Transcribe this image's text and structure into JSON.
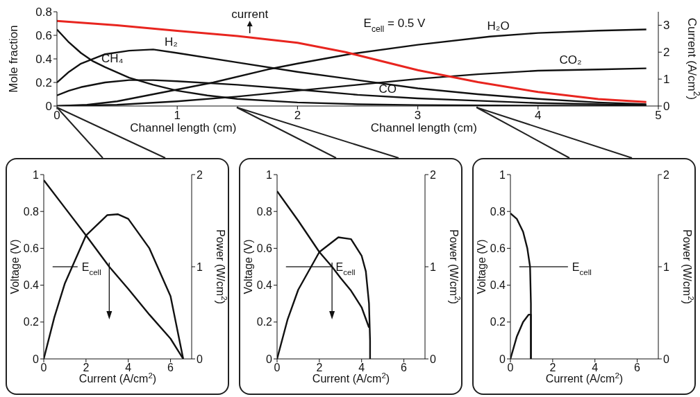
{
  "chart_data": [
    {
      "type": "line",
      "xlabel": "Channel length (cm)",
      "ylabel": "Mole fraction",
      "y2label": "Current (A/cm$^{2}$)",
      "annotations": [
        "E$_{cell}$ = 0.5 V",
        "Channel length (cm)"
      ],
      "xlim": [
        0,
        5
      ],
      "xticks": [
        0,
        1,
        2,
        3,
        4,
        5
      ],
      "ylim": [
        0,
        0.8
      ],
      "yticks": [
        0,
        0.2,
        0.4,
        0.6,
        0.8
      ],
      "y2lim": [
        0,
        3.5
      ],
      "y2ticks": [
        0,
        1,
        2,
        3
      ],
      "legend": false,
      "series": [
        {
          "name": "CH₄",
          "color": "#111111",
          "x": [
            0,
            0.1,
            0.2,
            0.3,
            0.4,
            0.6,
            0.8,
            1,
            1.25,
            1.5,
            2,
            2.5,
            3,
            4,
            4.9
          ],
          "values": [
            0.65,
            0.54,
            0.45,
            0.38,
            0.33,
            0.24,
            0.18,
            0.13,
            0.09,
            0.06,
            0.03,
            0.015,
            0.008,
            0.003,
            0.001
          ]
        },
        {
          "name": "H₂",
          "color": "#111111",
          "x": [
            0,
            0.1,
            0.2,
            0.4,
            0.6,
            0.8,
            1,
            1.5,
            2,
            2.5,
            3,
            3.5,
            4,
            4.5,
            4.9
          ],
          "values": [
            0.2,
            0.29,
            0.36,
            0.44,
            0.47,
            0.48,
            0.45,
            0.37,
            0.29,
            0.22,
            0.15,
            0.1,
            0.06,
            0.03,
            0.015
          ]
        },
        {
          "name": "CO",
          "color": "#111111",
          "x": [
            0,
            0.1,
            0.2,
            0.4,
            0.6,
            0.8,
            1,
            1.5,
            2,
            2.5,
            3,
            3.5,
            4,
            4.5,
            4.9
          ],
          "values": [
            0.09,
            0.13,
            0.16,
            0.2,
            0.22,
            0.22,
            0.21,
            0.18,
            0.14,
            0.095,
            0.065,
            0.045,
            0.025,
            0.015,
            0.008
          ]
        },
        {
          "name": "H₂O",
          "color": "#111111",
          "x": [
            0,
            0.25,
            0.5,
            0.75,
            1,
            1.3,
            1.75,
            2,
            2.43,
            3,
            3.6,
            4,
            4.5,
            4.9
          ],
          "values": [
            0,
            0.01,
            0.04,
            0.09,
            0.14,
            0.2,
            0.31,
            0.36,
            0.44,
            0.52,
            0.59,
            0.62,
            0.64,
            0.65
          ]
        },
        {
          "name": "CO₂",
          "color": "#111111",
          "x": [
            0,
            0.5,
            1,
            1.5,
            2,
            2.5,
            3,
            3.5,
            4,
            4.5,
            4.9
          ],
          "values": [
            0,
            0.01,
            0.04,
            0.08,
            0.13,
            0.18,
            0.23,
            0.27,
            0.3,
            0.31,
            0.32
          ]
        },
        {
          "name": "current",
          "color": "#e8251f",
          "axis": "y2",
          "x": [
            0,
            0.5,
            1,
            1.5,
            2,
            2.4,
            3,
            3.5,
            4,
            4.5,
            4.9
          ],
          "values": [
            3.16,
            3.0,
            2.79,
            2.6,
            2.35,
            2.0,
            1.33,
            0.89,
            0.52,
            0.26,
            0.15
          ]
        }
      ]
    },
    {
      "type": "line",
      "xlabel": "Current (A/cm$^{2}$)",
      "ylabel": "Voltage (V)",
      "y2label": "Power (W/cm$^{2}$)",
      "xlim": [
        0,
        7
      ],
      "xticks": [
        0,
        2,
        4,
        6
      ],
      "ylim": [
        0,
        1
      ],
      "yticks": [
        0,
        0.2,
        0.4,
        0.6,
        0.8,
        1
      ],
      "y2lim": [
        0,
        2
      ],
      "y2ticks": [
        0,
        1,
        2
      ],
      "legend": false,
      "ref_lines": [
        {
          "axis": "y",
          "value": 0.5,
          "label": "E$_{cell}$"
        }
      ],
      "series": [
        {
          "color": "#111111",
          "x": [
            0,
            1,
            2,
            3.1,
            4,
            5,
            6,
            6.6
          ],
          "values": [
            0.97,
            0.82,
            0.67,
            0.5,
            0.38,
            0.24,
            0.11,
            0
          ]
        },
        {
          "color": "#111111",
          "axis": "y2",
          "x": [
            0,
            0.5,
            1,
            2,
            3,
            3.5,
            4,
            5,
            6,
            6.6
          ],
          "values": [
            0,
            0.45,
            0.82,
            1.34,
            1.56,
            1.57,
            1.52,
            1.2,
            0.68,
            0
          ]
        }
      ]
    },
    {
      "type": "line",
      "xlabel": "Current (A/cm$^{2}$)",
      "ylabel": "Voltage (V)",
      "y2label": "Power (W/cm$^{2}$)",
      "xlim": [
        0,
        7
      ],
      "xticks": [
        0,
        2,
        4,
        6
      ],
      "ylim": [
        0,
        1
      ],
      "yticks": [
        0,
        0.2,
        0.4,
        0.6,
        0.8,
        1
      ],
      "y2lim": [
        0,
        2
      ],
      "y2ticks": [
        0,
        1,
        2
      ],
      "legend": false,
      "ref_lines": [
        {
          "axis": "y",
          "value": 0.5,
          "label": "E$_{cell}$"
        }
      ],
      "series": [
        {
          "color": "#111111",
          "x": [
            0,
            1,
            2,
            2.6,
            3,
            3.5,
            4,
            4.35
          ],
          "values": [
            0.91,
            0.75,
            0.58,
            0.5,
            0.44,
            0.37,
            0.28,
            0.17
          ]
        },
        {
          "color": "#111111",
          "axis": "y2",
          "x": [
            0,
            0.5,
            1,
            2,
            2.9,
            3.5,
            4,
            4.2,
            4.35,
            4.4,
            4.4
          ],
          "values": [
            0,
            0.43,
            0.75,
            1.16,
            1.32,
            1.3,
            1.12,
            0.95,
            0.6,
            0.2,
            0
          ]
        }
      ]
    },
    {
      "type": "line",
      "xlabel": "Current (A/cm$^{2}$)",
      "ylabel": "Voltage (V)",
      "y2label": "Power (W/cm$^{2}$)",
      "xlim": [
        0,
        7
      ],
      "xticks": [
        0,
        2,
        4,
        6
      ],
      "ylim": [
        0,
        1
      ],
      "yticks": [
        0,
        0.2,
        0.4,
        0.6,
        0.8,
        1
      ],
      "y2lim": [
        0,
        2
      ],
      "y2ticks": [
        0,
        1,
        2
      ],
      "legend": false,
      "ref_lines": [
        {
          "axis": "y",
          "value": 0.5,
          "label": "E$_{cell}$"
        }
      ],
      "series": [
        {
          "color": "#111111",
          "x": [
            0,
            0.3,
            0.6,
            0.8,
            0.93,
            0.97,
            0.97
          ],
          "values": [
            0.79,
            0.76,
            0.69,
            0.6,
            0.5,
            0.3,
            0
          ]
        },
        {
          "color": "#111111",
          "axis": "y2",
          "x": [
            0,
            0.3,
            0.6,
            0.86,
            0.97,
            0.97
          ],
          "values": [
            0,
            0.24,
            0.4,
            0.48,
            0.48,
            0
          ]
        }
      ]
    }
  ]
}
